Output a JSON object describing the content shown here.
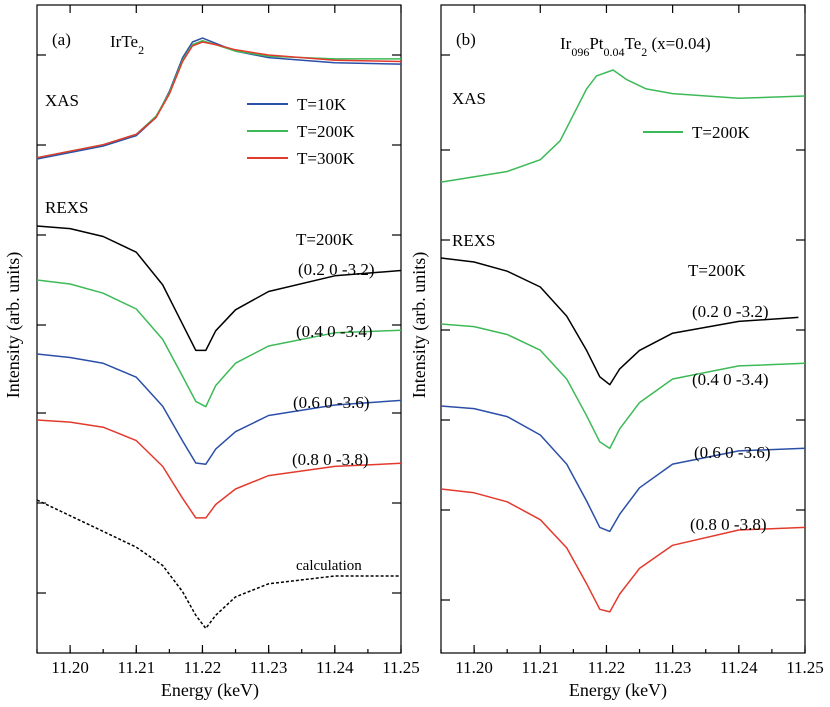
{
  "chart_data": [
    {
      "type": "line",
      "panel_label": "(a)",
      "compound": "IrTe2",
      "xlabel": "Energy (keV)",
      "ylabel": "Intensity (arb. units)",
      "xlim": [
        11.195,
        11.25
      ],
      "x_ticks": [
        "11.20",
        "11.21",
        "11.22",
        "11.23",
        "11.24",
        "11.25"
      ],
      "y_ticks_labeled": false,
      "legend_position": "right",
      "annotations": [
        "XAS",
        "REXS",
        "T=200K"
      ],
      "xas": {
        "label": "XAS",
        "series": [
          {
            "name": "T=10K",
            "color": "#2b4fa8",
            "x": [
              11.195,
              11.205,
              11.21,
              11.213,
              11.215,
              11.217,
              11.2185,
              11.22,
              11.222,
              11.225,
              11.23,
              11.24,
              11.25
            ],
            "y": [
              0.1,
              0.2,
              0.28,
              0.42,
              0.62,
              0.88,
              1.0,
              1.03,
              0.99,
              0.93,
              0.88,
              0.84,
              0.83
            ]
          },
          {
            "name": "T=200K",
            "color": "#3dba57",
            "x": [
              11.195,
              11.205,
              11.21,
              11.213,
              11.215,
              11.217,
              11.2185,
              11.22,
              11.222,
              11.225,
              11.23,
              11.24,
              11.25
            ],
            "y": [
              0.11,
              0.21,
              0.29,
              0.43,
              0.61,
              0.86,
              0.98,
              1.01,
              0.98,
              0.93,
              0.89,
              0.87,
              0.87
            ]
          },
          {
            "name": "T=300K",
            "color": "#e33a2e",
            "x": [
              11.195,
              11.205,
              11.21,
              11.213,
              11.215,
              11.217,
              11.2185,
              11.22,
              11.222,
              11.225,
              11.23,
              11.24,
              11.25
            ],
            "y": [
              0.11,
              0.21,
              0.29,
              0.42,
              0.6,
              0.85,
              0.97,
              1.0,
              0.98,
              0.94,
              0.9,
              0.86,
              0.85
            ]
          }
        ]
      },
      "rexs": {
        "label": "REXS",
        "temperature": "T=200K",
        "series": [
          {
            "name": "(0.2 0 -3.2)",
            "color": "#000000",
            "dash": false,
            "x": [
              11.195,
              11.2,
              11.205,
              11.21,
              11.214,
              11.217,
              11.219,
              11.2205,
              11.222,
              11.225,
              11.23,
              11.24,
              11.25
            ],
            "y": [
              1.0,
              0.98,
              0.92,
              0.8,
              0.55,
              0.25,
              0.05,
              0.05,
              0.2,
              0.36,
              0.5,
              0.62,
              0.66
            ]
          },
          {
            "name": "(0.4 0 -3.4)",
            "color": "#3dba57",
            "dash": false,
            "x": [
              11.195,
              11.2,
              11.205,
              11.21,
              11.214,
              11.217,
              11.219,
              11.2205,
              11.222,
              11.225,
              11.23,
              11.24,
              11.25
            ],
            "y": [
              1.0,
              0.97,
              0.9,
              0.78,
              0.55,
              0.27,
              0.08,
              0.04,
              0.2,
              0.37,
              0.5,
              0.6,
              0.62
            ]
          },
          {
            "name": "(0.6 0 -3.6)",
            "color": "#2b4fa8",
            "dash": false,
            "x": [
              11.195,
              11.2,
              11.205,
              11.21,
              11.214,
              11.217,
              11.219,
              11.2205,
              11.222,
              11.225,
              11.23,
              11.24,
              11.25
            ],
            "y": [
              1.0,
              0.97,
              0.92,
              0.8,
              0.55,
              0.25,
              0.06,
              0.05,
              0.18,
              0.33,
              0.47,
              0.56,
              0.6
            ]
          },
          {
            "name": "(0.8 0 -3.8)",
            "color": "#e33a2e",
            "dash": false,
            "x": [
              11.195,
              11.2,
              11.205,
              11.21,
              11.214,
              11.217,
              11.219,
              11.2205,
              11.222,
              11.225,
              11.23,
              11.24,
              11.25
            ],
            "y": [
              1.0,
              0.98,
              0.93,
              0.8,
              0.55,
              0.24,
              0.05,
              0.05,
              0.18,
              0.33,
              0.46,
              0.55,
              0.58
            ]
          },
          {
            "name": "calculation",
            "color": "#000000",
            "dash": true,
            "x": [
              11.195,
              11.2,
              11.205,
              11.21,
              11.214,
              11.217,
              11.219,
              11.2205,
              11.222,
              11.225,
              11.23,
              11.24,
              11.25
            ],
            "y": [
              1.0,
              0.88,
              0.76,
              0.64,
              0.5,
              0.3,
              0.12,
              0.02,
              0.12,
              0.26,
              0.36,
              0.42,
              0.42
            ]
          }
        ]
      }
    },
    {
      "type": "line",
      "panel_label": "(b)",
      "compound": "Ir096Pt0.04Te2 (x=0.04)",
      "xlabel": "Energy (keV)",
      "ylabel": "Intensity (arb. units)",
      "xlim": [
        11.195,
        11.25
      ],
      "x_ticks": [
        "11.20",
        "11.21",
        "11.22",
        "11.23",
        "11.24",
        "11.25"
      ],
      "y_ticks_labeled": false,
      "legend_position": "right",
      "annotations": [
        "XAS",
        "REXS",
        "T=200K"
      ],
      "xas": {
        "label": "XAS",
        "series": [
          {
            "name": "T=200K",
            "color": "#3dba57",
            "x": [
              11.195,
              11.205,
              11.21,
              11.213,
              11.215,
              11.217,
              11.2185,
              11.221,
              11.223,
              11.226,
              11.23,
              11.24,
              11.25
            ],
            "y": [
              0.05,
              0.14,
              0.24,
              0.4,
              0.62,
              0.84,
              0.95,
              1.0,
              0.92,
              0.84,
              0.8,
              0.76,
              0.78
            ]
          }
        ]
      },
      "rexs": {
        "label": "REXS",
        "temperature": "T=200K",
        "series": [
          {
            "name": "(0.2 0 -3.2)",
            "color": "#000000",
            "dash": false,
            "x": [
              11.195,
              11.2,
              11.205,
              11.21,
              11.214,
              11.217,
              11.219,
              11.2205,
              11.222,
              11.225,
              11.23,
              11.24,
              11.249
            ],
            "y": [
              1.0,
              0.97,
              0.9,
              0.78,
              0.56,
              0.3,
              0.1,
              0.04,
              0.16,
              0.3,
              0.43,
              0.52,
              0.55
            ]
          },
          {
            "name": "(0.4 0 -3.4)",
            "color": "#3dba57",
            "dash": false,
            "x": [
              11.195,
              11.2,
              11.205,
              11.21,
              11.214,
              11.217,
              11.219,
              11.2205,
              11.222,
              11.225,
              11.23,
              11.24,
              11.25
            ],
            "y": [
              1.0,
              0.98,
              0.92,
              0.8,
              0.58,
              0.3,
              0.1,
              0.05,
              0.2,
              0.4,
              0.58,
              0.68,
              0.7
            ]
          },
          {
            "name": "(0.6 0 -3.6)",
            "color": "#2b4fa8",
            "dash": false,
            "x": [
              11.195,
              11.2,
              11.205,
              11.21,
              11.214,
              11.217,
              11.219,
              11.2205,
              11.222,
              11.225,
              11.23,
              11.24,
              11.25
            ],
            "y": [
              1.0,
              0.98,
              0.92,
              0.78,
              0.56,
              0.28,
              0.08,
              0.05,
              0.18,
              0.38,
              0.56,
              0.66,
              0.68
            ]
          },
          {
            "name": "(0.8 0 -3.8)",
            "color": "#e33a2e",
            "dash": false,
            "x": [
              11.195,
              11.2,
              11.205,
              11.21,
              11.214,
              11.217,
              11.219,
              11.2205,
              11.222,
              11.225,
              11.23,
              11.24,
              11.25
            ],
            "y": [
              1.0,
              0.97,
              0.9,
              0.76,
              0.54,
              0.26,
              0.06,
              0.04,
              0.18,
              0.38,
              0.56,
              0.68,
              0.7
            ]
          }
        ]
      }
    }
  ]
}
